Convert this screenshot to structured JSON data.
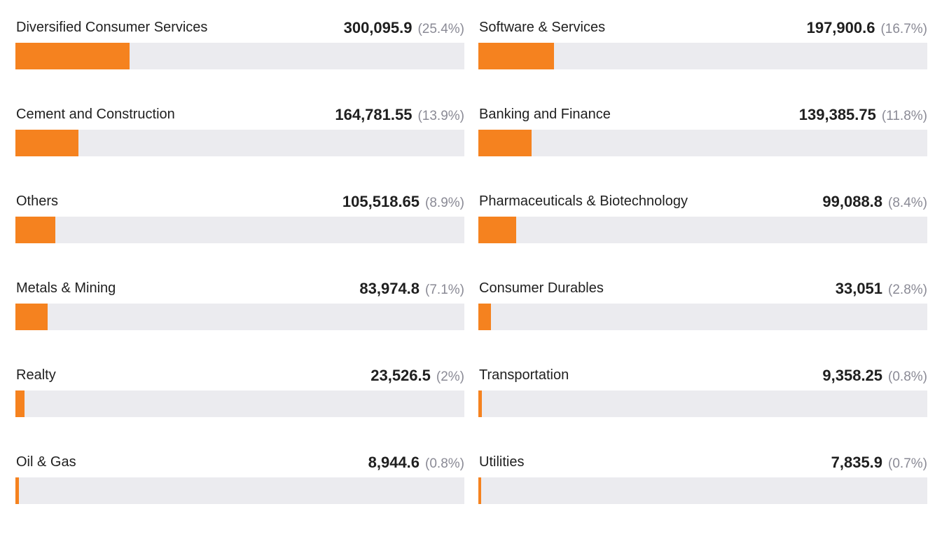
{
  "chart_data": {
    "type": "bar",
    "orientation": "horizontal",
    "bar_color": "#f5821f",
    "track_color": "#ebebef",
    "categories": [
      "Diversified Consumer Services",
      "Software & Services",
      "Cement and Construction",
      "Banking and Finance",
      "Others",
      "Pharmaceuticals & Biotechnology",
      "Metals & Mining",
      "Consumer Durables",
      "Realty",
      "Transportation",
      "Oil & Gas",
      "Utilities"
    ],
    "values": [
      300095.9,
      197900.6,
      164781.55,
      139385.75,
      105518.65,
      99088.8,
      83974.8,
      33051,
      23526.5,
      9358.25,
      8944.6,
      7835.9
    ],
    "value_labels": [
      "300,095.9",
      "197,900.6",
      "164,781.55",
      "139,385.75",
      "105,518.65",
      "99,088.8",
      "83,974.8",
      "33,051",
      "23,526.5",
      "9,358.25",
      "8,944.6",
      "7,835.9"
    ],
    "percent_labels": [
      "(25.4%)",
      "(16.7%)",
      "(13.9%)",
      "(11.8%)",
      "(8.9%)",
      "(8.4%)",
      "(7.1%)",
      "(2.8%)",
      "(2%)",
      "(0.8%)",
      "(0.8%)",
      "(0.7%)"
    ],
    "percent_values": [
      25.4,
      16.7,
      13.9,
      11.8,
      8.9,
      8.4,
      7.1,
      2.8,
      2.0,
      0.8,
      0.8,
      0.7
    ]
  }
}
